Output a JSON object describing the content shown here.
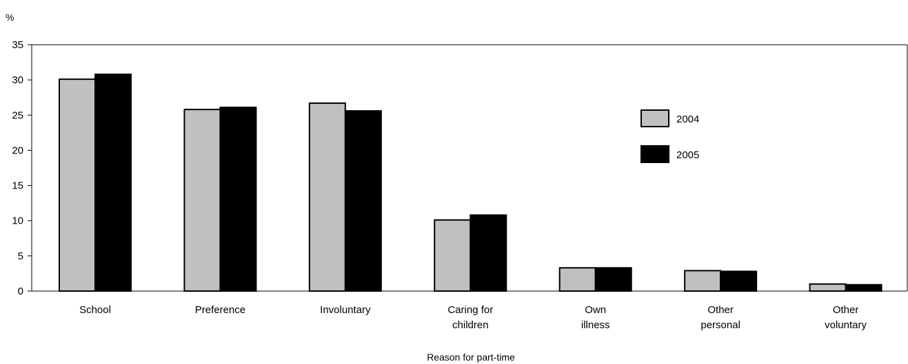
{
  "chart_data": {
    "type": "bar",
    "ylabel": "%",
    "xlabel": "Reason for part-time",
    "ylim": [
      0,
      35
    ],
    "yticks": [
      0,
      5,
      10,
      15,
      20,
      25,
      30,
      35
    ],
    "grid": false,
    "legend_position": "right",
    "categories": [
      [
        "School"
      ],
      [
        "Preference"
      ],
      [
        "Involuntary"
      ],
      [
        "Caring for",
        "children"
      ],
      [
        "Own",
        "illness"
      ],
      [
        "Other",
        "personal"
      ],
      [
        "Other",
        "voluntary"
      ]
    ],
    "series": [
      {
        "name": "2004",
        "color": "#c0c0c0",
        "values": [
          30.1,
          25.8,
          26.7,
          10.1,
          3.3,
          2.9,
          1.0
        ]
      },
      {
        "name": "2005",
        "color": "#000000",
        "values": [
          30.8,
          26.1,
          25.6,
          10.8,
          3.3,
          2.8,
          0.9
        ]
      }
    ]
  }
}
